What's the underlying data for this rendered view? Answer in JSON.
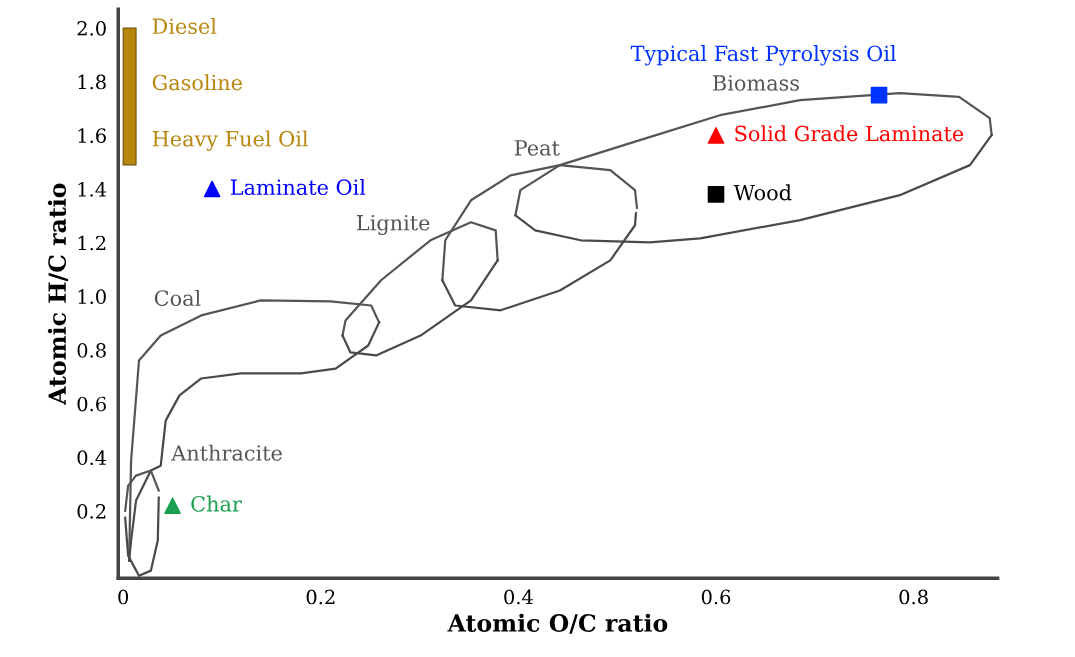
{
  "chart_data": {
    "type": "line",
    "xlabel": "Atomic O/C ratio",
    "ylabel": "Atomic H/C ratio",
    "xlim": [
      -0.005,
      0.885
    ],
    "ylim": [
      -0.05,
      2.07
    ],
    "xticks": [
      0,
      0.2,
      0.4,
      0.6,
      0.8
    ],
    "yticks": [
      0.2,
      0.4,
      0.6,
      0.8,
      {
        "value": 1,
        "label": "1.0"
      },
      1.2,
      1.4,
      1.6,
      1.8,
      {
        "value": 2,
        "label": "2.0"
      }
    ],
    "grid": false,
    "legend": false,
    "series": [
      {
        "type": "bar",
        "color": "#b8860b",
        "x": [
          0.0065
        ],
        "base": [
          1.49
        ],
        "values": [
          0.51
        ]
      },
      {
        "name": "Biomass",
        "color": "#555555",
        "x": [
          0.397,
          0.402,
          0.442,
          0.523,
          0.604,
          0.685,
          0.786,
          0.846,
          0.877,
          0.879
        ],
        "values": [
          1.302,
          1.396,
          1.489,
          1.582,
          1.675,
          1.731,
          1.757,
          1.743,
          1.664,
          1.601
        ]
      },
      {
        "color": "#4a4a4a",
        "x": [
          0.397,
          0.417,
          0.463,
          0.533,
          0.584,
          0.685,
          0.786,
          0.857,
          0.879
        ],
        "values": [
          1.302,
          1.246,
          1.209,
          1.201,
          1.216,
          1.284,
          1.377,
          1.489,
          1.601
        ]
      },
      {
        "name": "Peat",
        "color": "#555555",
        "x": [
          0.323,
          0.326,
          0.352,
          0.392,
          0.442,
          0.493,
          0.518,
          0.52
        ],
        "values": [
          1.06,
          1.209,
          1.358,
          1.451,
          1.489,
          1.47,
          1.396,
          1.33
        ]
      },
      {
        "color": "#4a4a4a",
        "x": [
          0.323,
          0.336,
          0.382,
          0.442,
          0.493,
          0.518,
          0.519
        ],
        "values": [
          1.06,
          0.966,
          0.948,
          1.022,
          1.134,
          1.265,
          1.31
        ]
      },
      {
        "name": "Lignite",
        "color": "#555555",
        "x": [
          0.222,
          0.225,
          0.261,
          0.311,
          0.352,
          0.377,
          0.379
        ],
        "values": [
          0.854,
          0.91,
          1.06,
          1.209,
          1.276,
          1.246,
          1.134
        ]
      },
      {
        "color": "#4a4a4a",
        "x": [
          0.222,
          0.23,
          0.256,
          0.301,
          0.352,
          0.379
        ],
        "values": [
          0.854,
          0.791,
          0.78,
          0.854,
          0.985,
          1.134
        ]
      },
      {
        "name": "Coal",
        "color": "#555555",
        "x": [
          0.006,
          0.008,
          0.016,
          0.038,
          0.079,
          0.139,
          0.21,
          0.251,
          0.259
        ],
        "values": [
          0.015,
          0.388,
          0.761,
          0.854,
          0.929,
          0.985,
          0.981,
          0.966,
          0.903
        ]
      },
      {
        "color": "#4a4a4a",
        "x": [
          0.006,
          0.008,
          0.013,
          0.028,
          0.038,
          0.043,
          0.057,
          0.079,
          0.119,
          0.18,
          0.215,
          0.248,
          0.259
        ],
        "values": [
          0.015,
          0.09,
          0.239,
          0.351,
          0.369,
          0.537,
          0.631,
          0.694,
          0.713,
          0.713,
          0.731,
          0.817,
          0.903
        ]
      },
      {
        "name": "Anthracite",
        "color": "#555555",
        "x": [
          0.002,
          0.005,
          0.013,
          0.028,
          0.036
        ],
        "values": [
          0.201,
          0.295,
          0.332,
          0.351,
          0.276
        ]
      },
      {
        "color": "#4a4a4a",
        "x": [
          0.002,
          0.005,
          0.016,
          0.028,
          0.035,
          0.036
        ],
        "values": [
          0.175,
          0.034,
          -0.041,
          -0.022,
          0.09,
          0.25
        ]
      },
      {
        "type": "scatter",
        "name": "Laminate Oil",
        "color": "#0000ff",
        "marker": "triangle",
        "x": [
          0.09
        ],
        "values": [
          1.4
        ]
      },
      {
        "type": "scatter",
        "name": "Char",
        "color": "#1aa050",
        "marker": "triangle",
        "x": [
          0.05
        ],
        "values": [
          0.22
        ]
      },
      {
        "type": "scatter",
        "name": "Solid Grade Laminate",
        "color": "#ff0000",
        "marker": "triangle",
        "x": [
          0.6
        ],
        "values": [
          1.6
        ]
      },
      {
        "type": "scatter",
        "name": "Wood",
        "color": "#000000",
        "marker": "square",
        "x": [
          0.6
        ],
        "values": [
          1.38
        ]
      },
      {
        "type": "scatter",
        "name": "Typical Fast Pyrolysis Oil",
        "color": "#0033ff",
        "marker": "square",
        "x": [
          0.765
        ],
        "values": [
          1.75
        ]
      }
    ],
    "annotations": [
      "Diesel",
      "Gasoline",
      "Heavy Fuel Oil"
    ]
  }
}
